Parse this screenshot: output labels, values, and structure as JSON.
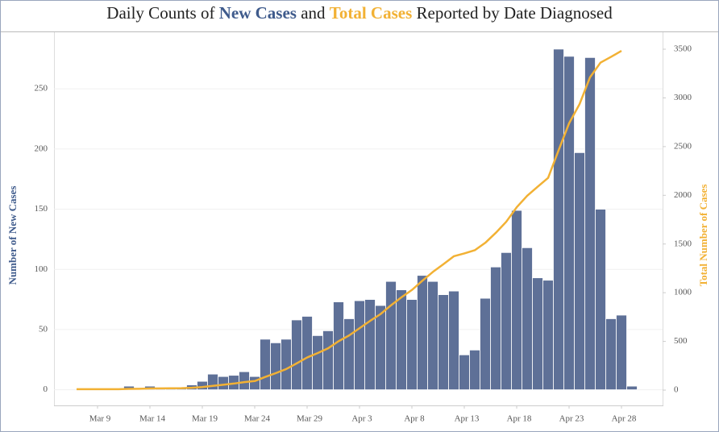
{
  "chart_data": {
    "type": "bar-line",
    "title": [
      "Daily Counts of ",
      "New Cases",
      " and ",
      "Total Cases",
      " Reported by Date Diagnosed"
    ],
    "y_label": "Number of New Cases",
    "y2_label": "Total Number of Cases",
    "categories": [
      null,
      null,
      "Mar 9",
      null,
      null,
      null,
      null,
      "Mar 14",
      null,
      null,
      null,
      null,
      "Mar 19",
      null,
      null,
      null,
      null,
      "Mar 24",
      null,
      null,
      null,
      null,
      "Mar 29",
      null,
      null,
      null,
      null,
      "Apr 3",
      null,
      null,
      null,
      null,
      "Apr 8",
      null,
      null,
      null,
      null,
      "Apr 13",
      null,
      null,
      null,
      null,
      "Apr 18",
      null,
      null,
      null,
      null,
      "Apr 23",
      null,
      null,
      null,
      null,
      "Apr 28",
      null
    ],
    "series": [
      {
        "name": "New Cases",
        "color": "#5e7097",
        "kind": "bar",
        "values": [
          0,
          0,
          0,
          0,
          0,
          3,
          1,
          3,
          1,
          1,
          1,
          4,
          7,
          13,
          11,
          12,
          15,
          11,
          42,
          39,
          42,
          58,
          61,
          45,
          49,
          73,
          59,
          74,
          75,
          70,
          90,
          83,
          75,
          95,
          90,
          79,
          82,
          29,
          33,
          76,
          102,
          114,
          149,
          118,
          93,
          91,
          283,
          277,
          197,
          276,
          150,
          59,
          62,
          3
        ]
      },
      {
        "name": "Total Cases",
        "color": "#f2b134",
        "kind": "line",
        "axis": "y2",
        "values": [
          10,
          10,
          10,
          10,
          10,
          13,
          14,
          17,
          18,
          19,
          20,
          24,
          31,
          44,
          55,
          67,
          82,
          93,
          135,
          174,
          216,
          274,
          335,
          380,
          429,
          502,
          561,
          635,
          710,
          780,
          870,
          953,
          1028,
          1123,
          1213,
          1292,
          1374,
          1403,
          1436,
          1512,
          1614,
          1728,
          1877,
          1995,
          2088,
          2179,
          2462,
          2739,
          2936,
          3212,
          3362,
          3421,
          3483,
          null
        ]
      }
    ],
    "ylim": [
      -13,
      297
    ],
    "yticks": [
      0,
      50,
      100,
      150,
      200,
      250
    ],
    "y2lim": [
      -157,
      3674
    ],
    "y2ticks": [
      0,
      500,
      1000,
      1500,
      2000,
      2500,
      3000,
      3500
    ],
    "grid": true
  }
}
